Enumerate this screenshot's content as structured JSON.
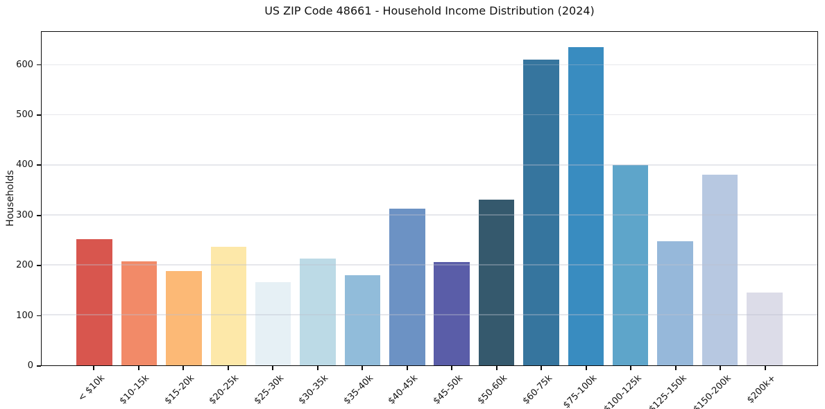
{
  "chart_data": {
    "type": "bar",
    "title": "US ZIP Code 48661 - Household Income Distribution (2024)",
    "xlabel": "",
    "ylabel": "Households",
    "categories": [
      "< $10k",
      "$10-15k",
      "$15-20k",
      "$20-25k",
      "$25-30k",
      "$30-35k",
      "$35-40k",
      "$40-45k",
      "$45-50k",
      "$50-60k",
      "$60-75k",
      "$75-100k",
      "$100-125k",
      "$125-150k",
      "$150-200k",
      "$200k+"
    ],
    "values": [
      252,
      208,
      188,
      237,
      167,
      214,
      180,
      313,
      207,
      331,
      612,
      636,
      401,
      248,
      382,
      146
    ],
    "bar_colors": [
      "#d8564e",
      "#f28a68",
      "#fcb976",
      "#fde8a9",
      "#e6f0f5",
      "#bcdae6",
      "#91bcda",
      "#6c92c4",
      "#5a5da8",
      "#35596d",
      "#36759e",
      "#398cc0",
      "#5ea5ca",
      "#96b8da",
      "#b7c8e1",
      "#dcdce8"
    ],
    "yticks": [
      0,
      100,
      200,
      300,
      400,
      500,
      600
    ],
    "ylim": [
      0,
      667
    ],
    "grid": "horizontal",
    "legend": "none",
    "background_color": "#ffffff",
    "spine_color": "#0a0a0a"
  }
}
